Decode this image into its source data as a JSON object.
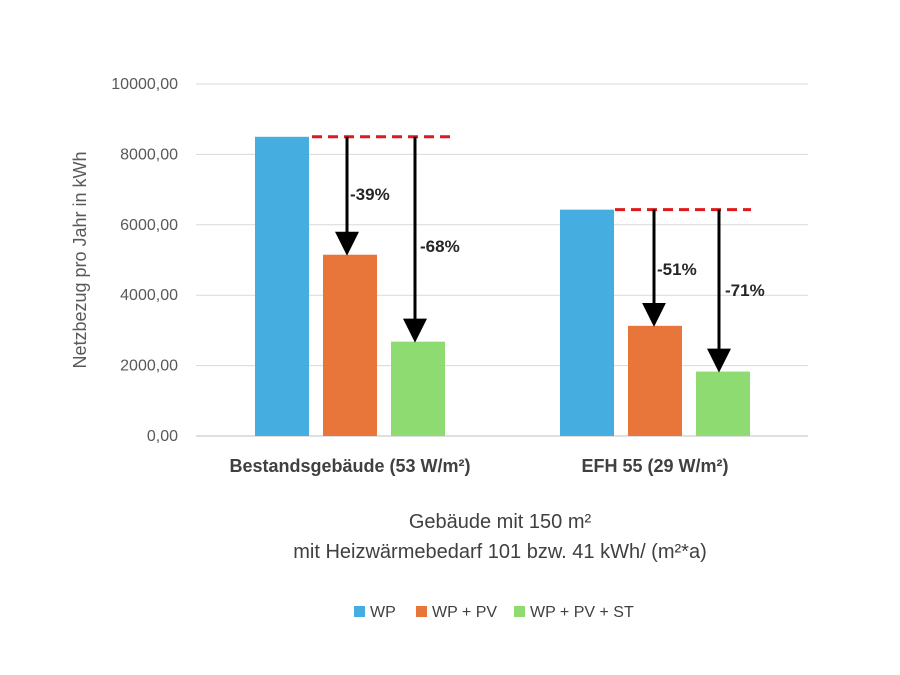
{
  "chart_data": {
    "type": "bar",
    "categories": [
      "Bestandsgebäude (53 W/m²)",
      "EFH 55 (29 W/m²)"
    ],
    "series": [
      {
        "name": "WP",
        "values": [
          8500,
          6430
        ],
        "color": "#45ADE0"
      },
      {
        "name": "WP + PV",
        "values": [
          5150,
          3130
        ],
        "color": "#E8763A"
      },
      {
        "name": "WP + PV + ST",
        "values": [
          2680,
          1830
        ],
        "color": "#8DDB71"
      }
    ],
    "ylabel": "Netzbezug pro Jahr in kWh",
    "ylim": [
      0,
      10000
    ],
    "yticks": [
      "0,00",
      "2000,00",
      "4000,00",
      "6000,00",
      "8000,00",
      "10000,00"
    ],
    "xlabel_line1": "Gebäude mit 150 m²",
    "xlabel_line2": "mit Heizwärmebedarf 101 bzw. 41 kWh/ (m²*a)",
    "annotations": [
      [
        "-39%",
        "-68%"
      ],
      [
        "-51%",
        "-71%"
      ]
    ],
    "grid": true,
    "legend_position": "bottom"
  }
}
